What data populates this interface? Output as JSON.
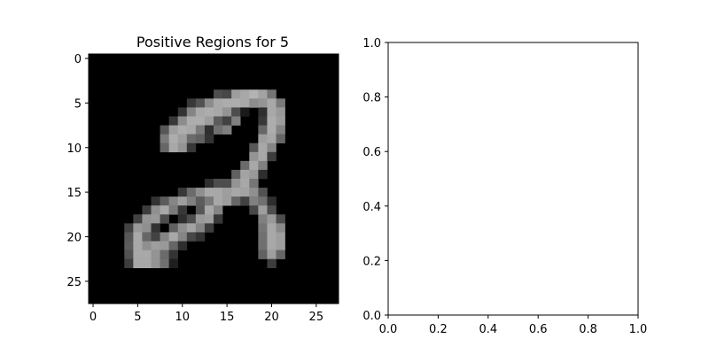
{
  "chart_data": [
    {
      "type": "heatmap",
      "title": "Positive Regions for 5",
      "colormap": "gray",
      "grid": false,
      "xlim": [
        -0.5,
        27.5
      ],
      "ylim": [
        27.5,
        -0.5
      ],
      "xticks": [
        0,
        5,
        10,
        15,
        20,
        25
      ],
      "yticks": [
        0,
        5,
        10,
        15,
        20,
        25
      ],
      "pixels": [
        {
          "r": 4,
          "c": 14,
          "v": 0.3
        },
        {
          "r": 4,
          "c": 15,
          "v": 0.28
        },
        {
          "r": 4,
          "c": 16,
          "v": 0.62
        },
        {
          "r": 4,
          "c": 17,
          "v": 0.66
        },
        {
          "r": 4,
          "c": 18,
          "v": 0.7
        },
        {
          "r": 4,
          "c": 19,
          "v": 0.64
        },
        {
          "r": 4,
          "c": 20,
          "v": 0.46
        },
        {
          "r": 5,
          "c": 11,
          "v": 0.22
        },
        {
          "r": 5,
          "c": 12,
          "v": 0.32
        },
        {
          "r": 5,
          "c": 13,
          "v": 0.55
        },
        {
          "r": 5,
          "c": 14,
          "v": 0.66
        },
        {
          "r": 5,
          "c": 15,
          "v": 0.68
        },
        {
          "r": 5,
          "c": 16,
          "v": 0.68
        },
        {
          "r": 5,
          "c": 17,
          "v": 0.66
        },
        {
          "r": 5,
          "c": 18,
          "v": 0.55
        },
        {
          "r": 5,
          "c": 19,
          "v": 0.58
        },
        {
          "r": 5,
          "c": 20,
          "v": 0.66
        },
        {
          "r": 5,
          "c": 21,
          "v": 0.48
        },
        {
          "r": 6,
          "c": 10,
          "v": 0.2
        },
        {
          "r": 6,
          "c": 11,
          "v": 0.52
        },
        {
          "r": 6,
          "c": 12,
          "v": 0.66
        },
        {
          "r": 6,
          "c": 13,
          "v": 0.68
        },
        {
          "r": 6,
          "c": 14,
          "v": 0.66
        },
        {
          "r": 6,
          "c": 15,
          "v": 0.58
        },
        {
          "r": 6,
          "c": 16,
          "v": 0.3
        },
        {
          "r": 6,
          "c": 17,
          "v": 0.1
        },
        {
          "r": 6,
          "c": 19,
          "v": 0.18
        },
        {
          "r": 6,
          "c": 20,
          "v": 0.66
        },
        {
          "r": 6,
          "c": 21,
          "v": 0.6
        },
        {
          "r": 7,
          "c": 9,
          "v": 0.22
        },
        {
          "r": 7,
          "c": 10,
          "v": 0.55
        },
        {
          "r": 7,
          "c": 11,
          "v": 0.68
        },
        {
          "r": 7,
          "c": 12,
          "v": 0.68
        },
        {
          "r": 7,
          "c": 13,
          "v": 0.62
        },
        {
          "r": 7,
          "c": 14,
          "v": 0.36
        },
        {
          "r": 7,
          "c": 15,
          "v": 0.26
        },
        {
          "r": 7,
          "c": 16,
          "v": 0.5
        },
        {
          "r": 7,
          "c": 19,
          "v": 0.22
        },
        {
          "r": 7,
          "c": 20,
          "v": 0.68
        },
        {
          "r": 7,
          "c": 21,
          "v": 0.62
        },
        {
          "r": 8,
          "c": 8,
          "v": 0.34
        },
        {
          "r": 8,
          "c": 9,
          "v": 0.62
        },
        {
          "r": 8,
          "c": 10,
          "v": 0.68
        },
        {
          "r": 8,
          "c": 11,
          "v": 0.66
        },
        {
          "r": 8,
          "c": 12,
          "v": 0.48
        },
        {
          "r": 8,
          "c": 13,
          "v": 0.18
        },
        {
          "r": 8,
          "c": 14,
          "v": 0.44
        },
        {
          "r": 8,
          "c": 15,
          "v": 0.5
        },
        {
          "r": 8,
          "c": 19,
          "v": 0.4
        },
        {
          "r": 8,
          "c": 20,
          "v": 0.68
        },
        {
          "r": 8,
          "c": 21,
          "v": 0.52
        },
        {
          "r": 9,
          "c": 8,
          "v": 0.48
        },
        {
          "r": 9,
          "c": 9,
          "v": 0.68
        },
        {
          "r": 9,
          "c": 10,
          "v": 0.62
        },
        {
          "r": 9,
          "c": 11,
          "v": 0.42
        },
        {
          "r": 9,
          "c": 12,
          "v": 0.38
        },
        {
          "r": 9,
          "c": 13,
          "v": 0.2
        },
        {
          "r": 9,
          "c": 19,
          "v": 0.62
        },
        {
          "r": 9,
          "c": 20,
          "v": 0.66
        },
        {
          "r": 9,
          "c": 21,
          "v": 0.4
        },
        {
          "r": 10,
          "c": 8,
          "v": 0.4
        },
        {
          "r": 10,
          "c": 9,
          "v": 0.66
        },
        {
          "r": 10,
          "c": 10,
          "v": 0.58
        },
        {
          "r": 10,
          "c": 11,
          "v": 0.22
        },
        {
          "r": 10,
          "c": 18,
          "v": 0.34
        },
        {
          "r": 10,
          "c": 19,
          "v": 0.66
        },
        {
          "r": 10,
          "c": 20,
          "v": 0.52
        },
        {
          "r": 11,
          "c": 18,
          "v": 0.58
        },
        {
          "r": 11,
          "c": 19,
          "v": 0.66
        },
        {
          "r": 11,
          "c": 20,
          "v": 0.24
        },
        {
          "r": 12,
          "c": 17,
          "v": 0.42
        },
        {
          "r": 12,
          "c": 18,
          "v": 0.66
        },
        {
          "r": 12,
          "c": 19,
          "v": 0.5
        },
        {
          "r": 13,
          "c": 16,
          "v": 0.38
        },
        {
          "r": 13,
          "c": 17,
          "v": 0.64
        },
        {
          "r": 13,
          "c": 18,
          "v": 0.6
        },
        {
          "r": 13,
          "c": 19,
          "v": 0.18
        },
        {
          "r": 14,
          "c": 13,
          "v": 0.18
        },
        {
          "r": 14,
          "c": 14,
          "v": 0.3
        },
        {
          "r": 14,
          "c": 15,
          "v": 0.3
        },
        {
          "r": 14,
          "c": 16,
          "v": 0.58
        },
        {
          "r": 14,
          "c": 17,
          "v": 0.66
        },
        {
          "r": 14,
          "c": 18,
          "v": 0.46
        },
        {
          "r": 15,
          "c": 10,
          "v": 0.22
        },
        {
          "r": 15,
          "c": 11,
          "v": 0.42
        },
        {
          "r": 15,
          "c": 12,
          "v": 0.56
        },
        {
          "r": 15,
          "c": 13,
          "v": 0.66
        },
        {
          "r": 15,
          "c": 14,
          "v": 0.66
        },
        {
          "r": 15,
          "c": 15,
          "v": 0.62
        },
        {
          "r": 15,
          "c": 16,
          "v": 0.66
        },
        {
          "r": 15,
          "c": 17,
          "v": 0.64
        },
        {
          "r": 15,
          "c": 18,
          "v": 0.56
        },
        {
          "r": 15,
          "c": 19,
          "v": 0.32
        },
        {
          "r": 16,
          "c": 7,
          "v": 0.2
        },
        {
          "r": 16,
          "c": 8,
          "v": 0.36
        },
        {
          "r": 16,
          "c": 9,
          "v": 0.52
        },
        {
          "r": 16,
          "c": 10,
          "v": 0.62
        },
        {
          "r": 16,
          "c": 11,
          "v": 0.5
        },
        {
          "r": 16,
          "c": 12,
          "v": 0.36
        },
        {
          "r": 16,
          "c": 13,
          "v": 0.48
        },
        {
          "r": 16,
          "c": 14,
          "v": 0.66
        },
        {
          "r": 16,
          "c": 15,
          "v": 0.62
        },
        {
          "r": 16,
          "c": 16,
          "v": 0.4
        },
        {
          "r": 16,
          "c": 17,
          "v": 0.26
        },
        {
          "r": 16,
          "c": 18,
          "v": 0.5
        },
        {
          "r": 16,
          "c": 19,
          "v": 0.44
        },
        {
          "r": 16,
          "c": 20,
          "v": 0.18
        },
        {
          "r": 17,
          "c": 6,
          "v": 0.24
        },
        {
          "r": 17,
          "c": 7,
          "v": 0.56
        },
        {
          "r": 17,
          "c": 8,
          "v": 0.66
        },
        {
          "r": 17,
          "c": 9,
          "v": 0.48
        },
        {
          "r": 17,
          "c": 10,
          "v": 0.22
        },
        {
          "r": 17,
          "c": 12,
          "v": 0.34
        },
        {
          "r": 17,
          "c": 13,
          "v": 0.66
        },
        {
          "r": 17,
          "c": 14,
          "v": 0.52
        },
        {
          "r": 17,
          "c": 18,
          "v": 0.28
        },
        {
          "r": 17,
          "c": 19,
          "v": 0.62
        },
        {
          "r": 17,
          "c": 20,
          "v": 0.3
        },
        {
          "r": 18,
          "c": 5,
          "v": 0.26
        },
        {
          "r": 18,
          "c": 6,
          "v": 0.58
        },
        {
          "r": 18,
          "c": 7,
          "v": 0.6
        },
        {
          "r": 18,
          "c": 8,
          "v": 0.3
        },
        {
          "r": 18,
          "c": 10,
          "v": 0.18
        },
        {
          "r": 18,
          "c": 11,
          "v": 0.3
        },
        {
          "r": 18,
          "c": 12,
          "v": 0.6
        },
        {
          "r": 18,
          "c": 13,
          "v": 0.62
        },
        {
          "r": 18,
          "c": 14,
          "v": 0.22
        },
        {
          "r": 18,
          "c": 19,
          "v": 0.5
        },
        {
          "r": 18,
          "c": 20,
          "v": 0.6
        },
        {
          "r": 18,
          "c": 21,
          "v": 0.3
        },
        {
          "r": 19,
          "c": 4,
          "v": 0.26
        },
        {
          "r": 19,
          "c": 5,
          "v": 0.6
        },
        {
          "r": 19,
          "c": 6,
          "v": 0.56
        },
        {
          "r": 19,
          "c": 7,
          "v": 0.2
        },
        {
          "r": 19,
          "c": 9,
          "v": 0.38
        },
        {
          "r": 19,
          "c": 10,
          "v": 0.56
        },
        {
          "r": 19,
          "c": 11,
          "v": 0.64
        },
        {
          "r": 19,
          "c": 12,
          "v": 0.52
        },
        {
          "r": 19,
          "c": 13,
          "v": 0.24
        },
        {
          "r": 19,
          "c": 19,
          "v": 0.46
        },
        {
          "r": 19,
          "c": 20,
          "v": 0.66
        },
        {
          "r": 19,
          "c": 21,
          "v": 0.54
        },
        {
          "r": 20,
          "c": 4,
          "v": 0.34
        },
        {
          "r": 20,
          "c": 5,
          "v": 0.66
        },
        {
          "r": 20,
          "c": 6,
          "v": 0.4
        },
        {
          "r": 20,
          "c": 7,
          "v": 0.26
        },
        {
          "r": 20,
          "c": 8,
          "v": 0.52
        },
        {
          "r": 20,
          "c": 9,
          "v": 0.66
        },
        {
          "r": 20,
          "c": 10,
          "v": 0.52
        },
        {
          "r": 20,
          "c": 11,
          "v": 0.28
        },
        {
          "r": 20,
          "c": 12,
          "v": 0.2
        },
        {
          "r": 20,
          "c": 19,
          "v": 0.44
        },
        {
          "r": 20,
          "c": 20,
          "v": 0.66
        },
        {
          "r": 20,
          "c": 21,
          "v": 0.62
        },
        {
          "r": 21,
          "c": 4,
          "v": 0.36
        },
        {
          "r": 21,
          "c": 5,
          "v": 0.66
        },
        {
          "r": 21,
          "c": 6,
          "v": 0.56
        },
        {
          "r": 21,
          "c": 7,
          "v": 0.62
        },
        {
          "r": 21,
          "c": 8,
          "v": 0.6
        },
        {
          "r": 21,
          "c": 9,
          "v": 0.4
        },
        {
          "r": 21,
          "c": 10,
          "v": 0.18
        },
        {
          "r": 21,
          "c": 19,
          "v": 0.44
        },
        {
          "r": 21,
          "c": 20,
          "v": 0.66
        },
        {
          "r": 21,
          "c": 21,
          "v": 0.62
        },
        {
          "r": 22,
          "c": 4,
          "v": 0.32
        },
        {
          "r": 22,
          "c": 5,
          "v": 0.66
        },
        {
          "r": 22,
          "c": 6,
          "v": 0.66
        },
        {
          "r": 22,
          "c": 7,
          "v": 0.58
        },
        {
          "r": 22,
          "c": 8,
          "v": 0.42
        },
        {
          "r": 22,
          "c": 9,
          "v": 0.2
        },
        {
          "r": 22,
          "c": 19,
          "v": 0.38
        },
        {
          "r": 22,
          "c": 20,
          "v": 0.62
        },
        {
          "r": 22,
          "c": 21,
          "v": 0.4
        },
        {
          "r": 23,
          "c": 4,
          "v": 0.24
        },
        {
          "r": 23,
          "c": 5,
          "v": 0.66
        },
        {
          "r": 23,
          "c": 6,
          "v": 0.66
        },
        {
          "r": 23,
          "c": 7,
          "v": 0.58
        },
        {
          "r": 23,
          "c": 8,
          "v": 0.44
        },
        {
          "r": 23,
          "c": 9,
          "v": 0.12
        },
        {
          "r": 23,
          "c": 20,
          "v": 0.24
        }
      ]
    },
    {
      "type": "scatter",
      "title": "",
      "series": [],
      "xlim": [
        0.0,
        1.0
      ],
      "ylim": [
        0.0,
        1.0
      ],
      "xticks": [
        "0.0",
        "0.2",
        "0.4",
        "0.6",
        "0.8",
        "1.0"
      ],
      "yticks": [
        "0.0",
        "0.2",
        "0.4",
        "0.6",
        "0.8",
        "1.0"
      ],
      "grid": false
    }
  ]
}
